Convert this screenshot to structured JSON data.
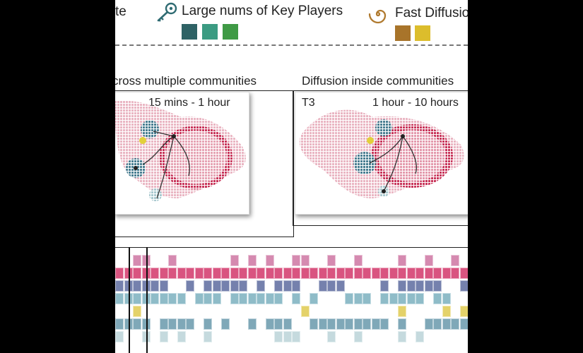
{
  "legend": {
    "partial_label": "te",
    "key_players_label": "Large nums of Key Players",
    "fast_diffusion_label": "Fast Diffusio",
    "key_players_colors": [
      "#2e6265",
      "#3b9b82",
      "#3f9a45"
    ],
    "fast_diffusion_colors": [
      "#a8742a",
      "#dcbd2c"
    ]
  },
  "sections": {
    "left_title": "cross multiple communities",
    "right_title": "Diffusion inside  communities"
  },
  "cards": {
    "left": {
      "time": "15 mins - 1 hour"
    },
    "right": {
      "tag": "T3",
      "time": "1 hour - 10 hours"
    }
  },
  "icons": {
    "key_players": "key-icon",
    "fast_diffusion": "spiral-icon"
  },
  "colors": {
    "pink_cloud": "#eec4cd",
    "red_community": "#c8355a",
    "teal_community": "#4a7f92",
    "yellow_node": "#e2d03a",
    "strip_rows": [
      "#d58ab0",
      "#d95480",
      "#7581ad",
      "#8fbcc8",
      "#e4d26a",
      "#7fa8b8",
      "#c5dade"
    ]
  }
}
